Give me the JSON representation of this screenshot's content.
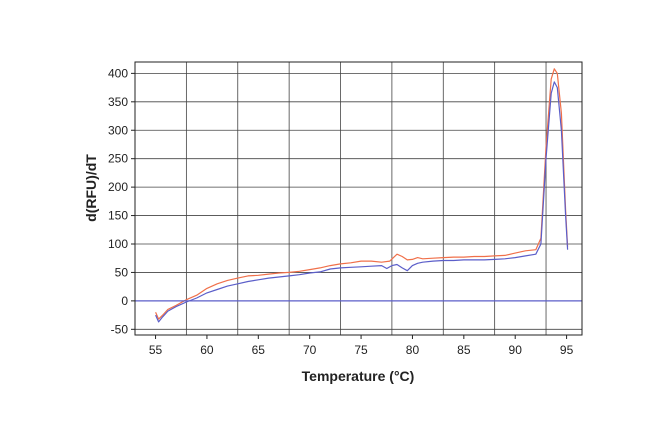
{
  "chart_data": {
    "type": "line",
    "title": "",
    "xlabel": "Temperature (°C)",
    "ylabel": "d(RFU)/dT",
    "xlim": [
      53,
      96.5
    ],
    "ylim": [
      -60,
      420
    ],
    "xticks": [
      55,
      60,
      65,
      70,
      75,
      80,
      85,
      90,
      95
    ],
    "yticks": [
      -50,
      0,
      50,
      100,
      150,
      200,
      250,
      300,
      350,
      400
    ],
    "x_gridlines": [
      52,
      58,
      63,
      68,
      73,
      78,
      83,
      88,
      93
    ],
    "grid": true,
    "legend": "none",
    "series": [
      {
        "color": "#f0704a",
        "points": [
          [
            55,
            -20
          ],
          [
            55.3,
            -32
          ],
          [
            55.7,
            -25
          ],
          [
            56.2,
            -15
          ],
          [
            57,
            -8
          ],
          [
            58,
            2
          ],
          [
            59,
            10
          ],
          [
            60,
            22
          ],
          [
            61,
            30
          ],
          [
            62,
            36
          ],
          [
            63,
            40
          ],
          [
            64,
            44
          ],
          [
            65,
            45
          ],
          [
            66,
            47
          ],
          [
            67,
            49
          ],
          [
            68,
            50
          ],
          [
            69,
            52
          ],
          [
            70,
            55
          ],
          [
            71,
            58
          ],
          [
            72,
            62
          ],
          [
            73,
            65
          ],
          [
            74,
            67
          ],
          [
            75,
            70
          ],
          [
            76,
            70
          ],
          [
            77,
            68
          ],
          [
            77.8,
            70
          ],
          [
            78.5,
            82
          ],
          [
            79,
            78
          ],
          [
            79.5,
            72
          ],
          [
            80,
            73
          ],
          [
            80.5,
            76
          ],
          [
            81,
            74
          ],
          [
            82,
            75
          ],
          [
            83,
            76
          ],
          [
            84,
            77
          ],
          [
            85,
            77
          ],
          [
            86,
            78
          ],
          [
            87,
            78
          ],
          [
            88,
            79
          ],
          [
            89,
            80
          ],
          [
            90,
            84
          ],
          [
            91,
            88
          ],
          [
            92,
            90
          ],
          [
            92.5,
            110
          ],
          [
            93,
            270
          ],
          [
            93.5,
            390
          ],
          [
            93.8,
            408
          ],
          [
            94.1,
            400
          ],
          [
            94.5,
            330
          ],
          [
            94.9,
            160
          ],
          [
            95.1,
            95
          ]
        ]
      },
      {
        "color": "#5b5ec9",
        "points": [
          [
            55,
            -25
          ],
          [
            55.3,
            -37
          ],
          [
            55.7,
            -28
          ],
          [
            56.2,
            -18
          ],
          [
            57,
            -10
          ],
          [
            58,
            -2
          ],
          [
            59,
            5
          ],
          [
            60,
            14
          ],
          [
            61,
            20
          ],
          [
            62,
            26
          ],
          [
            63,
            30
          ],
          [
            64,
            34
          ],
          [
            65,
            37
          ],
          [
            66,
            40
          ],
          [
            67,
            42
          ],
          [
            68,
            44
          ],
          [
            69,
            46
          ],
          [
            70,
            49
          ],
          [
            71,
            51
          ],
          [
            72,
            56
          ],
          [
            73,
            58
          ],
          [
            74,
            59
          ],
          [
            75,
            60
          ],
          [
            76,
            61
          ],
          [
            77,
            62
          ],
          [
            77.5,
            57
          ],
          [
            78,
            62
          ],
          [
            78.5,
            64
          ],
          [
            79,
            58
          ],
          [
            79.5,
            53
          ],
          [
            80,
            62
          ],
          [
            80.5,
            66
          ],
          [
            81,
            68
          ],
          [
            82,
            70
          ],
          [
            83,
            71
          ],
          [
            84,
            71
          ],
          [
            85,
            72
          ],
          [
            86,
            72
          ],
          [
            87,
            72
          ],
          [
            88,
            73
          ],
          [
            89,
            74
          ],
          [
            90,
            76
          ],
          [
            91,
            79
          ],
          [
            92,
            82
          ],
          [
            92.5,
            100
          ],
          [
            93,
            250
          ],
          [
            93.5,
            365
          ],
          [
            93.8,
            385
          ],
          [
            94.1,
            375
          ],
          [
            94.5,
            300
          ],
          [
            94.9,
            150
          ],
          [
            95.1,
            90
          ]
        ]
      },
      {
        "color": "#5b5ec9",
        "points": [
          [
            53,
            0
          ],
          [
            96.5,
            0
          ]
        ]
      }
    ]
  }
}
